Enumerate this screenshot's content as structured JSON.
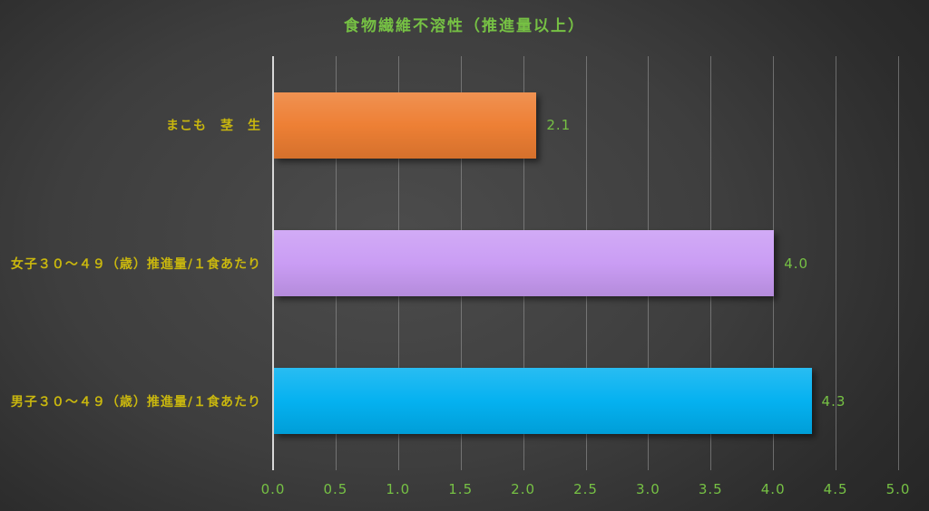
{
  "title": "食物繊維不溶性（推進量以上）",
  "colors": {
    "title_text": "#76c144",
    "value_text": "#76c144",
    "category_text": "#c9b70e",
    "axis_line": "#d8d8d8",
    "gridline": "#9e9e9e"
  },
  "chart_data": {
    "type": "bar",
    "orientation": "horizontal",
    "title": "食物繊維不溶性（推進量以上）",
    "categories": [
      "まこも　茎　生",
      "女子３０～４９（歳）推進量/１食あたり",
      "男子３０～４９（歳）推進量/１食あたり"
    ],
    "values": [
      2.1,
      4.0,
      4.3
    ],
    "data_labels": [
      "2.1",
      "4.0",
      "4.3"
    ],
    "bar_colors": [
      "#ed7d31",
      "#c99bf4",
      "#00b0f0"
    ],
    "xlabel": "",
    "ylabel": "",
    "xlim": [
      0,
      5
    ],
    "xticks": [
      "0.0",
      "0.5",
      "1.0",
      "1.5",
      "2.0",
      "2.5",
      "3.0",
      "3.5",
      "4.0",
      "4.5",
      "5.0"
    ],
    "grid": true,
    "legend": false
  }
}
